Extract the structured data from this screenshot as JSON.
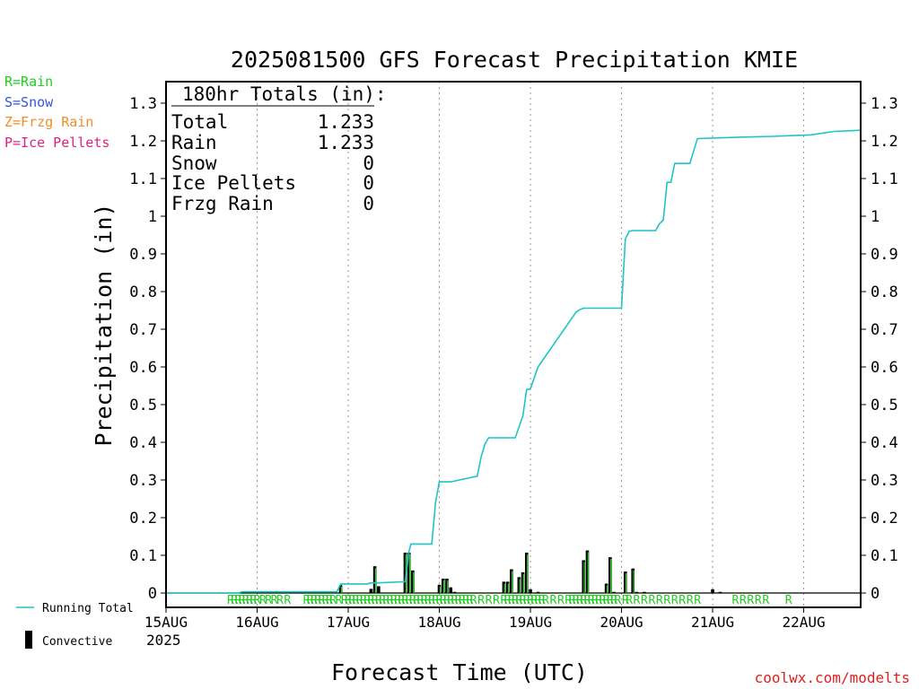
{
  "chart_data": {
    "type": "line",
    "title": "2025081500 GFS Forecast Precipitation KMIE",
    "xlabel": "Forecast Time (UTC)",
    "ylabel": "Precipitation (in)",
    "xlim": [
      0,
      183
    ],
    "ylim": [
      0,
      1.32
    ],
    "grid": "vertical dotted at day boundaries",
    "x_ticks": [
      {
        "h": 0,
        "label": "15AUG"
      },
      {
        "h": 24,
        "label": "16AUG"
      },
      {
        "h": 48,
        "label": "17AUG"
      },
      {
        "h": 72,
        "label": "18AUG"
      },
      {
        "h": 96,
        "label": "19AUG"
      },
      {
        "h": 120,
        "label": "20AUG"
      },
      {
        "h": 144,
        "label": "21AUG"
      },
      {
        "h": 168,
        "label": "22AUG"
      }
    ],
    "x_year": "2025",
    "y_ticks": [
      "0",
      "0.1",
      "0.2",
      "0.3",
      "0.4",
      "0.5",
      "0.6",
      "0.7",
      "0.8",
      "0.9",
      "1",
      "1.1",
      "1.2",
      "1.3"
    ],
    "y_tick_values": [
      0,
      0.1,
      0.2,
      0.3,
      0.4,
      0.5,
      0.6,
      0.7,
      0.8,
      0.9,
      1.0,
      1.1,
      1.2,
      1.3
    ],
    "running_total": {
      "name": "Running Total",
      "color": "#1fc4c4",
      "x": [
        0,
        19,
        20,
        45,
        46,
        53,
        54,
        56,
        63,
        64,
        64.5,
        66,
        70,
        71,
        72,
        73,
        75,
        82,
        83,
        84,
        85,
        87,
        88,
        89,
        90,
        92,
        94,
        95,
        96,
        98,
        108,
        109,
        110,
        111,
        113,
        114,
        120,
        121,
        122,
        123,
        124,
        125,
        126,
        129,
        130,
        131,
        132,
        133,
        134,
        138,
        140,
        152,
        160,
        170,
        176,
        183
      ],
      "y": [
        0,
        0,
        0.003,
        0.003,
        0.024,
        0.024,
        0.027,
        0.027,
        0.03,
        0.11,
        0.13,
        0.13,
        0.13,
        0.24,
        0.295,
        0.295,
        0.295,
        0.31,
        0.36,
        0.395,
        0.412,
        0.412,
        0.412,
        0.412,
        0.412,
        0.412,
        0.47,
        0.54,
        0.542,
        0.6,
        0.745,
        0.752,
        0.756,
        0.756,
        0.756,
        0.756,
        0.756,
        0.94,
        0.96,
        0.962,
        0.962,
        0.962,
        0.962,
        0.962,
        0.98,
        0.99,
        1.09,
        1.09,
        1.14,
        1.14,
        1.206,
        1.21,
        1.212,
        1.216,
        1.225,
        1.228
      ],
      "note_units": "hours since 15AUG 00Z, inches"
    },
    "convective_bars": {
      "name": "Convective",
      "color": "#000000",
      "x": [
        46,
        54,
        55,
        56,
        63,
        64,
        65,
        72,
        73,
        74,
        75,
        76,
        89,
        90,
        91,
        93,
        94,
        95,
        96,
        98,
        110,
        111,
        116,
        117,
        118,
        121,
        123,
        124,
        126,
        144,
        146
      ],
      "y": [
        0.021,
        0.011,
        0.071,
        0.018,
        0.107,
        0.107,
        0.06,
        0.022,
        0.038,
        0.038,
        0.015,
        0.003,
        0.03,
        0.03,
        0.063,
        0.042,
        0.055,
        0.107,
        0.01,
        0.003,
        0.087,
        0.113,
        0.025,
        0.095,
        0.003,
        0.057,
        0.065,
        0.003,
        0.003,
        0.01,
        0.003
      ]
    },
    "precip_type_markers": {
      "label": "R",
      "color": "#22cc22",
      "x": [
        17,
        18,
        19,
        20,
        21,
        22,
        23,
        24,
        25.5,
        27,
        28.5,
        30,
        32,
        37,
        38,
        39,
        40,
        41,
        42,
        43,
        44,
        45.5,
        47,
        48,
        49,
        50,
        51,
        52,
        53,
        54,
        55,
        56,
        57,
        58,
        59,
        60,
        61,
        62,
        63,
        64,
        65,
        66,
        67,
        68,
        69,
        70,
        71,
        72,
        73,
        74,
        75,
        76,
        77,
        78,
        79,
        80,
        81,
        83,
        85,
        87,
        89,
        90,
        91,
        92,
        93,
        94,
        95,
        96,
        97,
        98,
        99,
        100,
        102,
        104,
        106,
        107,
        108,
        109,
        110,
        111,
        112,
        113,
        114,
        115,
        116,
        117,
        118,
        119,
        121,
        122,
        124,
        126,
        128,
        130,
        132,
        134,
        136,
        138,
        140,
        150,
        152,
        154,
        156,
        158,
        164
      ]
    },
    "legend_types": [
      {
        "label": "R=Rain",
        "color": "#22cc22"
      },
      {
        "label": "S=Snow",
        "color": "#3355dd"
      },
      {
        "label": "Z=Frzg Rain",
        "color": "#f28c28"
      },
      {
        "label": "P=Ice Pellets",
        "color": "#e02080"
      }
    ],
    "totals_box": {
      "header": "180hr Totals (in):",
      "rows": [
        {
          "label": "Total",
          "value": "1.233"
        },
        {
          "label": "Rain",
          "value": "1.233"
        },
        {
          "label": "Snow",
          "value": "0"
        },
        {
          "label": "Ice Pellets",
          "value": "0"
        },
        {
          "label": "Frzg Rain",
          "value": "0"
        }
      ]
    },
    "bottom_legend": [
      {
        "label": "Running Total",
        "color": "#1fc4c4"
      },
      {
        "label": "Convective",
        "color": "#000000"
      }
    ],
    "credit": "coolwx.com/modelts",
    "credit_color": "#e02020"
  }
}
